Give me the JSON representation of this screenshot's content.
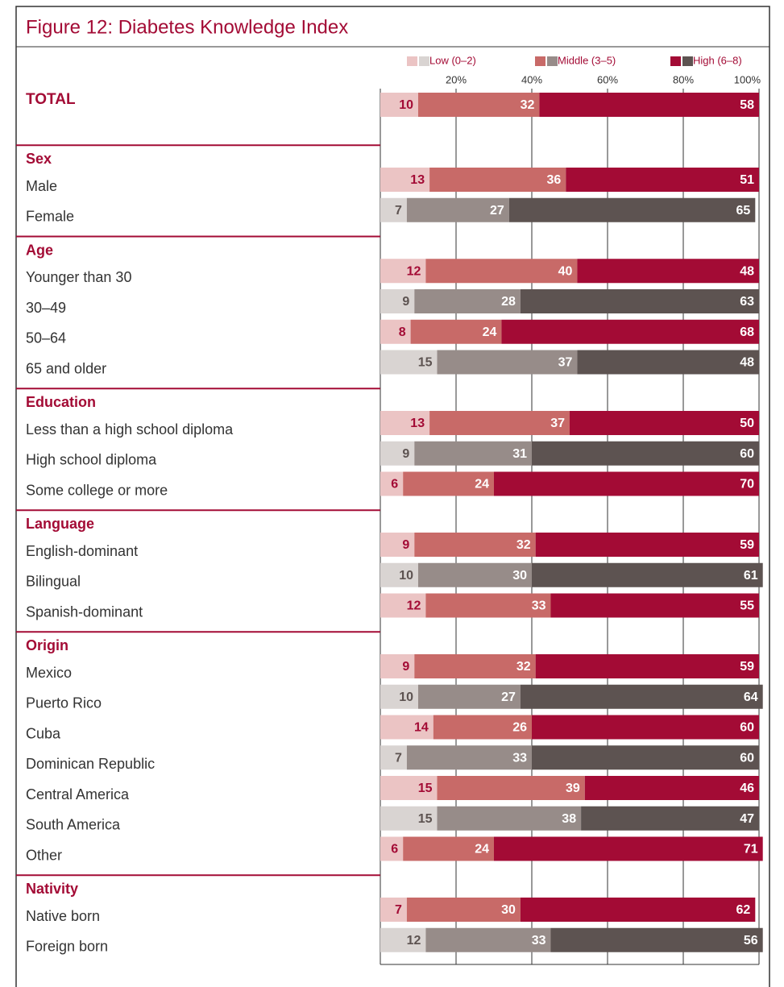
{
  "chart_data": {
    "type": "stacked-bar",
    "title": "Figure 12: Diabetes Knowledge Index",
    "xlim": [
      0,
      100
    ],
    "xticks": [
      {
        "value": 20,
        "label": "20%"
      },
      {
        "value": 40,
        "label": "40%"
      },
      {
        "value": 60,
        "label": "60%"
      },
      {
        "value": 80,
        "label": "80%"
      },
      {
        "value": 100,
        "label": "100%"
      }
    ],
    "grid": true,
    "segments": [
      {
        "name": "Low (0–2)",
        "colors": [
          "#ebc4c4",
          "#d9d4d2"
        ]
      },
      {
        "name": "Middle (3–5)",
        "colors": [
          "#c86a68",
          "#978c89"
        ]
      },
      {
        "name": "High (6–8)",
        "colors": [
          "#a30b35",
          "#5d5351"
        ]
      }
    ],
    "total": {
      "label": "TOTAL",
      "values": [
        10,
        32,
        58
      ]
    },
    "groups": [
      {
        "name": "Sex",
        "categories": [
          "Male",
          "Female"
        ],
        "values": [
          [
            13,
            36,
            51
          ],
          [
            7,
            27,
            65
          ]
        ]
      },
      {
        "name": "Age",
        "categories": [
          "Younger than 30",
          "30–49",
          "50–64",
          "65 and older"
        ],
        "values": [
          [
            12,
            40,
            48
          ],
          [
            9,
            28,
            63
          ],
          [
            8,
            24,
            68
          ],
          [
            15,
            37,
            48
          ]
        ]
      },
      {
        "name": "Education",
        "categories": [
          "Less than a high school diploma",
          "High school diploma",
          "Some college or more"
        ],
        "values": [
          [
            13,
            37,
            50
          ],
          [
            9,
            31,
            60
          ],
          [
            6,
            24,
            70
          ]
        ]
      },
      {
        "name": "Language",
        "categories": [
          "English-dominant",
          "Bilingual",
          "Spanish-dominant"
        ],
        "values": [
          [
            9,
            32,
            59
          ],
          [
            10,
            30,
            61
          ],
          [
            12,
            33,
            55
          ]
        ]
      },
      {
        "name": "Origin",
        "categories": [
          "Mexico",
          "Puerto Rico",
          "Cuba",
          "Dominican Republic",
          "Central America",
          "South America",
          "Other"
        ],
        "values": [
          [
            9,
            32,
            59
          ],
          [
            10,
            27,
            64
          ],
          [
            14,
            26,
            60
          ],
          [
            7,
            33,
            60
          ],
          [
            15,
            39,
            46
          ],
          [
            15,
            38,
            47
          ],
          [
            6,
            24,
            71
          ]
        ]
      },
      {
        "name": "Nativity",
        "categories": [
          "Native born",
          "Foreign born"
        ],
        "values": [
          [
            7,
            30,
            62
          ],
          [
            12,
            33,
            56
          ]
        ]
      }
    ]
  }
}
